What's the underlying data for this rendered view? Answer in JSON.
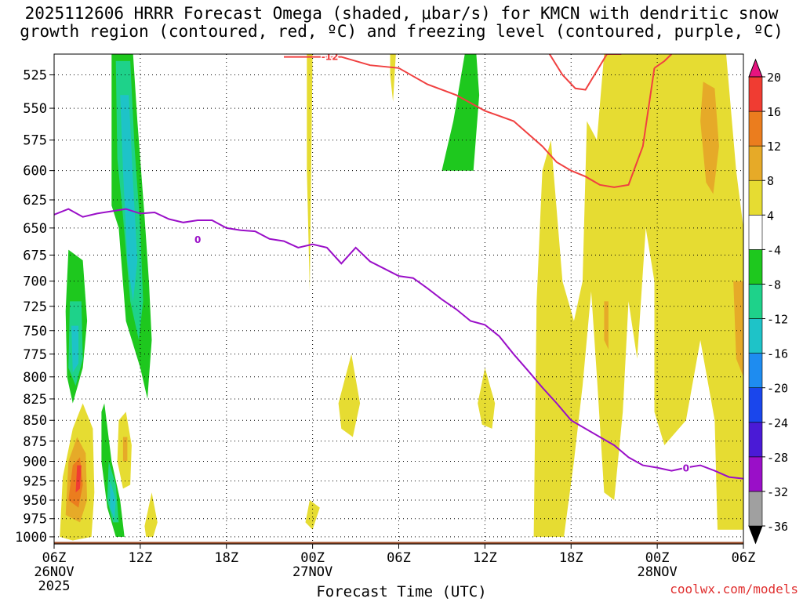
{
  "title": {
    "line1": "2025112606 HRRR Forecast Omega (shaded, μbar/s) for KMCN with dendritic snow",
    "line2": "growth region (contoured, red, ºC) and freezing level (contoured, purple, ºC)"
  },
  "credit": "coolwx.com/models",
  "chart_data": {
    "type": "heatmap",
    "title": "2025112606 HRRR Forecast Omega (shaded, μbar/s) for KMCN with dendritic snow growth region (contoured, red, ºC) and freezing level (contoured, purple, ºC)",
    "xlabel": "Forecast Time (UTC)",
    "ylabel": "",
    "x_hours_range": [
      0,
      48
    ],
    "ylim": [
      1010,
      510
    ],
    "y_scale": "log-pressure (reversed)",
    "grid": true,
    "x_ticks": [
      {
        "h": 0,
        "label": "06Z",
        "date": "26NOV",
        "year": "2025"
      },
      {
        "h": 6,
        "label": "12Z"
      },
      {
        "h": 12,
        "label": "18Z"
      },
      {
        "h": 18,
        "label": "00Z",
        "date": "27NOV"
      },
      {
        "h": 24,
        "label": "06Z"
      },
      {
        "h": 30,
        "label": "12Z"
      },
      {
        "h": 36,
        "label": "18Z"
      },
      {
        "h": 42,
        "label": "00Z",
        "date": "28NOV"
      },
      {
        "h": 48,
        "label": "06Z"
      }
    ],
    "y_ticks": [
      525,
      550,
      575,
      600,
      625,
      650,
      675,
      700,
      725,
      750,
      775,
      800,
      825,
      850,
      875,
      900,
      925,
      950,
      975,
      1000
    ],
    "colorbar": {
      "levels": [
        -36,
        -32,
        -28,
        -24,
        -20,
        -16,
        -12,
        -8,
        -4,
        4,
        8,
        12,
        16,
        20
      ],
      "labels": [
        "-36",
        "-32",
        "-28",
        "-24",
        "-20",
        "-16",
        "-12",
        "-8",
        "-4",
        "4",
        "8",
        "12",
        "16",
        "20"
      ],
      "colors": [
        "#000000",
        "#a0a0a0",
        "#9a0fc8",
        "#4a1ad6",
        "#1a46ec",
        "#1e8cf0",
        "#1ec3c8",
        "#1ed28a",
        "#1ec81e",
        "#ffffff",
        "#e6dc32",
        "#e6aa28",
        "#eb7d1e",
        "#f03c32",
        "#e6147f"
      ]
    },
    "omega_regions": [
      {
        "color": "#1ec81e",
        "points": [
          [
            4.0,
            510
          ],
          [
            5.5,
            510
          ],
          [
            5.8,
            560
          ],
          [
            6.3,
            640
          ],
          [
            6.6,
            700
          ],
          [
            6.8,
            760
          ],
          [
            6.5,
            825
          ],
          [
            6.0,
            790
          ],
          [
            5.0,
            740
          ],
          [
            4.5,
            650
          ],
          [
            4.0,
            630
          ]
        ]
      },
      {
        "color": "#1ed28a",
        "points": [
          [
            4.3,
            515
          ],
          [
            5.3,
            515
          ],
          [
            5.6,
            580
          ],
          [
            6.0,
            650
          ],
          [
            6.2,
            720
          ],
          [
            5.9,
            760
          ],
          [
            5.3,
            720
          ],
          [
            4.8,
            640
          ],
          [
            4.4,
            590
          ]
        ]
      },
      {
        "color": "#1ec3c8",
        "points": [
          [
            4.6,
            540
          ],
          [
            5.2,
            540
          ],
          [
            5.5,
            610
          ],
          [
            5.8,
            680
          ],
          [
            5.5,
            720
          ],
          [
            5.1,
            680
          ],
          [
            4.8,
            600
          ]
        ]
      },
      {
        "color": "#1ec81e",
        "points": [
          [
            1.0,
            670
          ],
          [
            2.0,
            680
          ],
          [
            2.3,
            740
          ],
          [
            2.0,
            790
          ],
          [
            1.3,
            830
          ],
          [
            0.9,
            800
          ],
          [
            0.8,
            730
          ]
        ]
      },
      {
        "color": "#1ed28a",
        "points": [
          [
            1.1,
            720
          ],
          [
            1.9,
            720
          ],
          [
            2.0,
            780
          ],
          [
            1.5,
            810
          ],
          [
            1.0,
            790
          ]
        ]
      },
      {
        "color": "#1ec3c8",
        "points": [
          [
            1.2,
            745
          ],
          [
            1.7,
            745
          ],
          [
            1.7,
            785
          ],
          [
            1.3,
            795
          ]
        ]
      },
      {
        "color": "#1ec81e",
        "points": [
          [
            3.5,
            830
          ],
          [
            4.0,
            900
          ],
          [
            4.6,
            950
          ],
          [
            4.9,
            1000
          ],
          [
            4.3,
            1000
          ],
          [
            3.7,
            960
          ],
          [
            3.3,
            900
          ],
          [
            3.3,
            840
          ]
        ]
      },
      {
        "color": "#1ed28a",
        "points": [
          [
            3.8,
            900
          ],
          [
            4.3,
            930
          ],
          [
            4.5,
            980
          ],
          [
            4.1,
            980
          ],
          [
            3.7,
            950
          ]
        ]
      },
      {
        "color": "#1ec3c8",
        "points": [
          [
            3.9,
            925
          ],
          [
            4.3,
            950
          ],
          [
            4.2,
            975
          ],
          [
            3.9,
            960
          ]
        ]
      },
      {
        "color": "#1ec81e",
        "points": [
          [
            27.0,
            600
          ],
          [
            27.8,
            560
          ],
          [
            28.6,
            510
          ],
          [
            29.4,
            510
          ],
          [
            29.6,
            540
          ],
          [
            29.2,
            600
          ]
        ]
      },
      {
        "color": "#e6dc32",
        "points": [
          [
            0.4,
            1000
          ],
          [
            0.6,
            920
          ],
          [
            1.3,
            860
          ],
          [
            2.0,
            830
          ],
          [
            2.7,
            860
          ],
          [
            2.8,
            940
          ],
          [
            2.6,
            1000
          ],
          [
            1.3,
            1005
          ]
        ]
      },
      {
        "color": "#e6aa28",
        "points": [
          [
            0.8,
            970
          ],
          [
            1.0,
            900
          ],
          [
            1.6,
            870
          ],
          [
            2.2,
            890
          ],
          [
            2.3,
            950
          ],
          [
            1.8,
            980
          ]
        ]
      },
      {
        "color": "#eb7d1e",
        "points": [
          [
            1.0,
            950
          ],
          [
            1.3,
            905
          ],
          [
            1.8,
            895
          ],
          [
            2.0,
            930
          ],
          [
            1.7,
            960
          ]
        ]
      },
      {
        "color": "#f03c32",
        "points": [
          [
            1.5,
            940
          ],
          [
            1.6,
            905
          ],
          [
            1.9,
            905
          ],
          [
            1.8,
            935
          ]
        ]
      },
      {
        "color": "#e6dc32",
        "points": [
          [
            4.5,
            850
          ],
          [
            5.0,
            840
          ],
          [
            5.4,
            880
          ],
          [
            5.3,
            930
          ],
          [
            4.8,
            935
          ],
          [
            4.4,
            900
          ]
        ]
      },
      {
        "color": "#e6aa28",
        "points": [
          [
            4.8,
            870
          ],
          [
            5.1,
            870
          ],
          [
            5.1,
            900
          ],
          [
            4.8,
            900
          ]
        ]
      },
      {
        "color": "#e6dc32",
        "points": [
          [
            6.3,
            985
          ],
          [
            6.8,
            940
          ],
          [
            7.2,
            980
          ],
          [
            6.9,
            1000
          ],
          [
            6.4,
            1000
          ]
        ]
      },
      {
        "color": "#e6dc32",
        "points": [
          [
            17.6,
            510
          ],
          [
            18.0,
            510
          ],
          [
            17.9,
            600
          ],
          [
            17.8,
            710
          ],
          [
            17.6,
            600
          ]
        ]
      },
      {
        "color": "#e6dc32",
        "points": [
          [
            23.4,
            510
          ],
          [
            23.8,
            510
          ],
          [
            23.6,
            545
          ],
          [
            23.4,
            525
          ]
        ]
      },
      {
        "color": "#e6dc32",
        "points": [
          [
            17.5,
            980
          ],
          [
            17.8,
            950
          ],
          [
            18.5,
            960
          ],
          [
            18.0,
            990
          ]
        ]
      },
      {
        "color": "#e6dc32",
        "points": [
          [
            19.8,
            830
          ],
          [
            20.7,
            775
          ],
          [
            21.3,
            830
          ],
          [
            20.8,
            870
          ],
          [
            20.0,
            860
          ]
        ]
      },
      {
        "color": "#e6dc32",
        "points": [
          [
            29.5,
            830
          ],
          [
            30.0,
            790
          ],
          [
            30.7,
            830
          ],
          [
            30.5,
            860
          ],
          [
            29.8,
            855
          ]
        ]
      },
      {
        "color": "#e6dc32",
        "points": [
          [
            33.4,
            1000
          ],
          [
            33.6,
            720
          ],
          [
            34.0,
            600
          ],
          [
            34.6,
            575
          ],
          [
            35.4,
            700
          ],
          [
            36.2,
            740
          ],
          [
            36.8,
            700
          ],
          [
            37.1,
            560
          ],
          [
            37.8,
            575
          ],
          [
            38.3,
            510
          ],
          [
            46.8,
            510
          ],
          [
            47.5,
            600
          ],
          [
            48.0,
            650
          ],
          [
            48.0,
            990
          ],
          [
            46.2,
            990
          ],
          [
            46.0,
            850
          ],
          [
            45.0,
            760
          ],
          [
            44.0,
            850
          ],
          [
            42.5,
            880
          ],
          [
            41.8,
            840
          ],
          [
            41.8,
            700
          ],
          [
            41.2,
            650
          ],
          [
            40.6,
            780
          ],
          [
            40.0,
            720
          ],
          [
            39.6,
            840
          ],
          [
            39.0,
            950
          ],
          [
            38.3,
            940
          ],
          [
            37.8,
            800
          ],
          [
            37.4,
            710
          ],
          [
            36.8,
            810
          ],
          [
            36.2,
            900
          ],
          [
            35.5,
            1000
          ]
        ]
      },
      {
        "color": "#e6aa28",
        "points": [
          [
            45.2,
            530
          ],
          [
            46.0,
            535
          ],
          [
            46.3,
            580
          ],
          [
            45.9,
            620
          ],
          [
            45.4,
            610
          ],
          [
            45.0,
            560
          ]
        ]
      },
      {
        "color": "#e6aa28",
        "points": [
          [
            47.3,
            700
          ],
          [
            48.0,
            700
          ],
          [
            48.0,
            800
          ],
          [
            47.5,
            780
          ]
        ]
      },
      {
        "color": "#e6aa28",
        "points": [
          [
            38.3,
            720
          ],
          [
            38.6,
            720
          ],
          [
            38.6,
            770
          ],
          [
            38.3,
            760
          ]
        ]
      }
    ],
    "freezing_level_0C": {
      "label": "0",
      "x": [
        0,
        1,
        2,
        3,
        4,
        5,
        6,
        7,
        8,
        9,
        10,
        11,
        12,
        13,
        14,
        15,
        16,
        17,
        18,
        19,
        20,
        21,
        22,
        23,
        24,
        25,
        26,
        27,
        28,
        29,
        30,
        31,
        32,
        33,
        34,
        35,
        36,
        37,
        38,
        39,
        40,
        41,
        42,
        43,
        44,
        45,
        46,
        47,
        48
      ],
      "y": [
        638,
        633,
        640,
        637,
        635,
        633,
        637,
        636,
        642,
        645,
        643,
        643,
        650,
        652,
        653,
        660,
        662,
        668,
        665,
        668,
        683,
        668,
        681,
        688,
        695,
        697,
        707,
        718,
        728,
        740,
        744,
        756,
        775,
        793,
        812,
        830,
        850,
        860,
        870,
        880,
        895,
        905,
        908,
        912,
        908,
        905,
        912,
        920,
        922
      ]
    },
    "dendritic_minus12C": {
      "label": "-12",
      "segments": [
        {
          "x": [
            16,
            20,
            22,
            24,
            26,
            28,
            30,
            32,
            34,
            35,
            36,
            37,
            38,
            39,
            40,
            41,
            41.8
          ],
          "y": [
            512,
            512,
            518,
            520,
            532,
            540,
            552,
            560,
            580,
            593,
            600,
            605,
            612,
            614,
            612,
            580,
            520
          ]
        },
        {
          "x": [
            34.5,
            35.4,
            36.3,
            37.0,
            38.5,
            39.5
          ],
          "y": [
            510,
            525,
            535,
            536,
            510,
            510
          ]
        },
        {
          "x": [
            41.8,
            42.5,
            43.0
          ],
          "y": [
            520,
            515,
            510
          ]
        }
      ]
    },
    "terrain": {
      "color": "#a0522d",
      "pressure_top": 1007
    }
  },
  "x_axis_title": "Forecast Time (UTC)"
}
